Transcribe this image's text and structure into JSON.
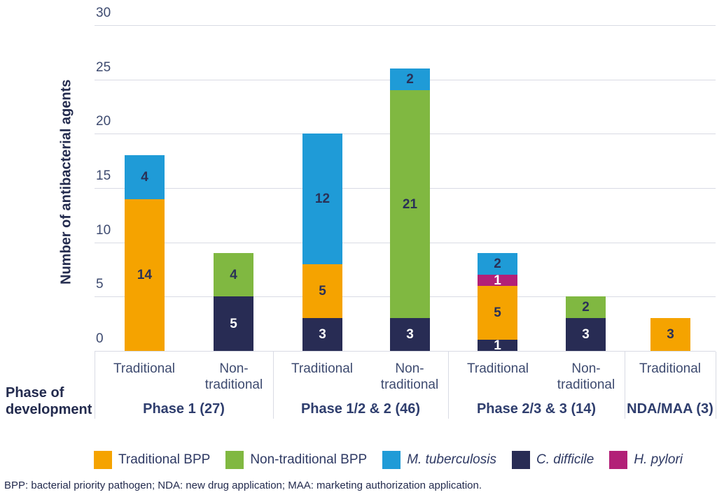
{
  "y_axis": {
    "title": "Number of antibacterial agents",
    "ticks": [
      0,
      5,
      10,
      15,
      20,
      25,
      30
    ],
    "max": 30
  },
  "x_axis": {
    "title": "Phase of development"
  },
  "footnote": "BPP: bacterial priority pathogen; NDA: new drug application; MAA: marketing authorization application.",
  "colors": {
    "traditional_bpp": "#F5A300",
    "non_traditional_bpp": "#80B841",
    "m_tuberculosis": "#1F9BD7",
    "c_difficile": "#282C54",
    "h_pylori": "#B22077",
    "grid": "#D9DBE4",
    "dark_text": "#2A3157",
    "white": "#FFFFFF"
  },
  "series_styles": {
    "Traditional BPP": {
      "color_key": "traditional_bpp",
      "label_color_key": "dark_text"
    },
    "Non-traditional BPP": {
      "color_key": "non_traditional_bpp",
      "label_color_key": "dark_text"
    },
    "M. tuberculosis": {
      "color_key": "m_tuberculosis",
      "label_color_key": "dark_text"
    },
    "C. difficile": {
      "color_key": "c_difficile",
      "label_color_key": "white"
    },
    "H. pylori": {
      "color_key": "h_pylori",
      "label_color_key": "white"
    }
  },
  "legend": [
    {
      "label": "Traditional BPP",
      "series": "Traditional BPP",
      "italic": false
    },
    {
      "label": "Non-traditional BPP",
      "series": "Non-traditional BPP",
      "italic": false
    },
    {
      "label": "M. tuberculosis",
      "series": "M. tuberculosis",
      "italic": true
    },
    {
      "label": "C. difficile",
      "series": "C. difficile",
      "italic": true
    },
    {
      "label": "H. pylori",
      "series": "H. pylori",
      "italic": true
    }
  ],
  "chart_data": {
    "type": "bar",
    "stacked": true,
    "title": "",
    "ylabel": "Number of antibacterial agents",
    "xlabel": "Phase of development",
    "ylim": [
      0,
      30
    ],
    "yticks": [
      0,
      5,
      10,
      15,
      20,
      25,
      30
    ],
    "grid": true,
    "legend_position": "bottom",
    "series_names": [
      "Traditional BPP",
      "Non-traditional BPP",
      "M. tuberculosis",
      "C. difficile",
      "H. pylori"
    ],
    "groups": [
      {
        "label": "Phase 1 (27)",
        "total": 27,
        "bars": [
          {
            "label": "Traditional",
            "total": 18,
            "segments": [
              {
                "name": "Traditional BPP",
                "value": 14
              },
              {
                "name": "M. tuberculosis",
                "value": 4
              }
            ]
          },
          {
            "label": "Non-traditional",
            "total": 9,
            "segments": [
              {
                "name": "C. difficile",
                "value": 5
              },
              {
                "name": "Non-traditional BPP",
                "value": 4
              }
            ]
          }
        ]
      },
      {
        "label": "Phase 1/2 & 2 (46)",
        "total": 46,
        "bars": [
          {
            "label": "Traditional",
            "total": 20,
            "segments": [
              {
                "name": "C. difficile",
                "value": 3
              },
              {
                "name": "Traditional BPP",
                "value": 5
              },
              {
                "name": "M. tuberculosis",
                "value": 12
              }
            ]
          },
          {
            "label": "Non-traditional",
            "total": 26,
            "segments": [
              {
                "name": "C. difficile",
                "value": 3
              },
              {
                "name": "Non-traditional BPP",
                "value": 21
              },
              {
                "name": "M. tuberculosis",
                "value": 2
              }
            ]
          }
        ]
      },
      {
        "label": "Phase 2/3 & 3 (14)",
        "total": 14,
        "bars": [
          {
            "label": "Traditional",
            "total": 9,
            "segments": [
              {
                "name": "C. difficile",
                "value": 1
              },
              {
                "name": "Traditional BPP",
                "value": 5
              },
              {
                "name": "H. pylori",
                "value": 1
              },
              {
                "name": "M. tuberculosis",
                "value": 2
              }
            ]
          },
          {
            "label": "Non-traditional",
            "total": 5,
            "segments": [
              {
                "name": "C. difficile",
                "value": 3
              },
              {
                "name": "Non-traditional BPP",
                "value": 2
              }
            ]
          }
        ]
      },
      {
        "label": "NDA/MAA (3)",
        "total": 3,
        "bars": [
          {
            "label": "Traditional",
            "total": 3,
            "segments": [
              {
                "name": "Traditional BPP",
                "value": 3
              }
            ]
          }
        ]
      }
    ]
  }
}
